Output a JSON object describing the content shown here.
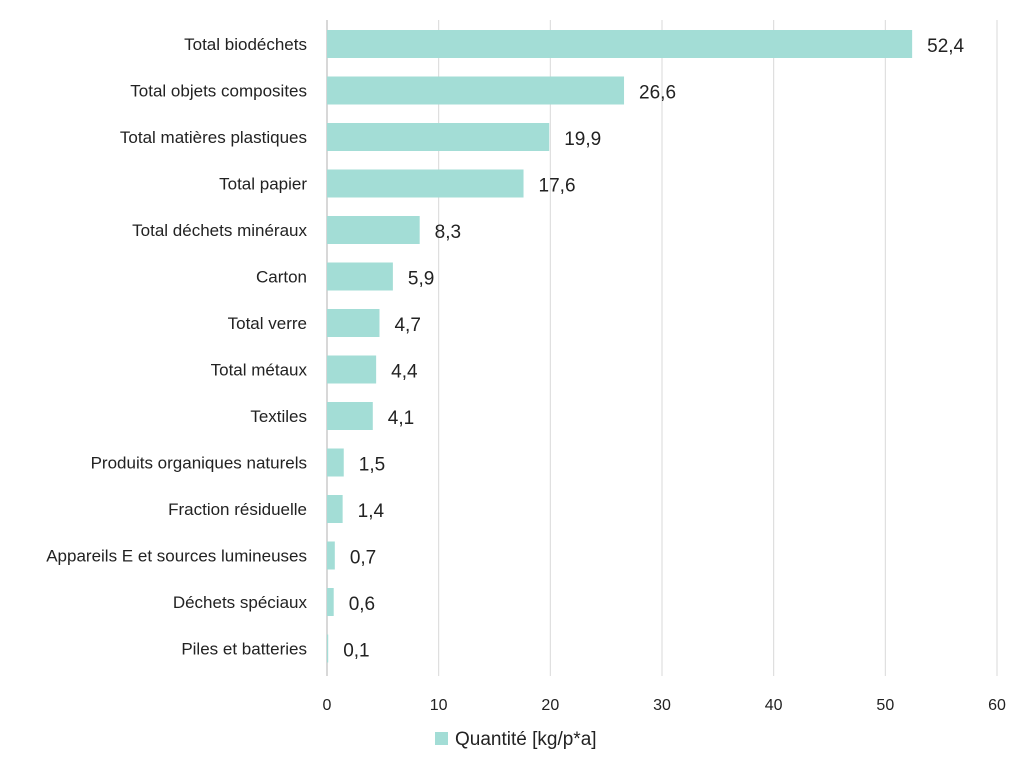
{
  "chart_data": {
    "type": "bar",
    "orientation": "horizontal",
    "categories": [
      "Total biodéchets",
      "Total objets composites",
      "Total matières plastiques",
      "Total papier",
      "Total déchets minéraux",
      "Carton",
      "Total verre",
      "Total métaux",
      "Textiles",
      "Produits organiques naturels",
      "Fraction résiduelle",
      "Appareils E et sources lumineuses",
      "Déchets spéciaux",
      "Piles et batteries"
    ],
    "series": [
      {
        "name": "Quantité [kg/p*a]",
        "values": [
          52.4,
          26.6,
          19.9,
          17.6,
          8.3,
          5.9,
          4.7,
          4.4,
          4.1,
          1.5,
          1.4,
          0.7,
          0.6,
          0.1
        ],
        "value_labels": [
          "52,4",
          "26,6",
          "19,9",
          "17,6",
          "8,3",
          "5,9",
          "4,7",
          "4,4",
          "4,1",
          "1,5",
          "1,4",
          "0,7",
          "0,6",
          "0,1"
        ],
        "color": "#a3ddd6"
      }
    ],
    "xlim": [
      0,
      60
    ],
    "x_ticks": [
      "0",
      "10",
      "20",
      "30",
      "40",
      "50",
      "60"
    ],
    "grid": "vertical",
    "legend": {
      "position": "bottom",
      "label": "Quantité [kg/p*a]"
    },
    "colors": {
      "bar": "#a3ddd6",
      "grid": "#d9d9d9",
      "axis": "#bfbfbf",
      "text": "#222222"
    }
  }
}
